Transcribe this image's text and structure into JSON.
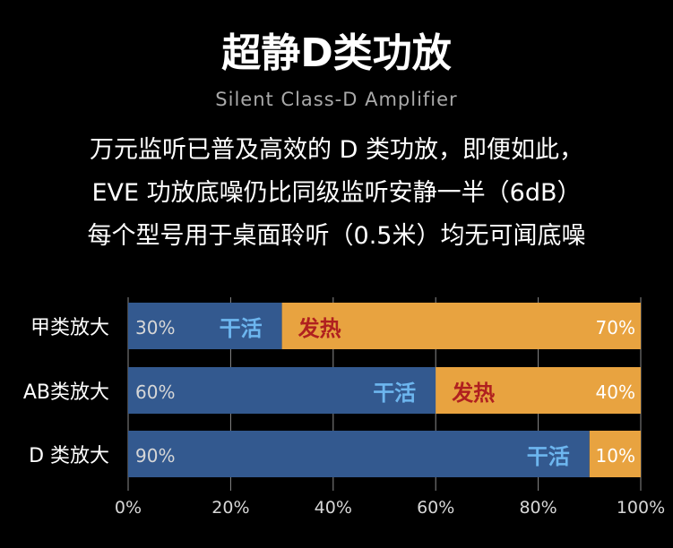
{
  "header": {
    "title": "超静D类功放",
    "subtitle": "Silent Class-D Amplifier",
    "lines": [
      "万元监听已普及高效的 D 类功放，即便如此，",
      "EVE 功放底噪仍比同级监听安静一半（6dB）",
      "每个型号用于桌面聆听（0.5米）均无可闻底噪"
    ]
  },
  "chart_data": {
    "type": "bar",
    "orientation": "horizontal",
    "stacked": true,
    "categories": [
      "甲类放大",
      "AB类放大",
      "D 类放大"
    ],
    "series": [
      {
        "name": "干活",
        "values": [
          30,
          60,
          90
        ],
        "labels": [
          "30%",
          "60%",
          "90%"
        ],
        "color": "#33598f",
        "name_color": "#6db6ef"
      },
      {
        "name": "发热",
        "values": [
          70,
          40,
          10
        ],
        "labels": [
          "70%",
          "40%",
          "10%"
        ],
        "color": "#e8a340",
        "name_color": "#b0201f"
      }
    ],
    "xticks": [
      "0%",
      "20%",
      "40%",
      "60%",
      "80%",
      "100%"
    ],
    "xlim": [
      0,
      100
    ],
    "grid": true,
    "title": "",
    "xlabel": "",
    "ylabel": ""
  }
}
